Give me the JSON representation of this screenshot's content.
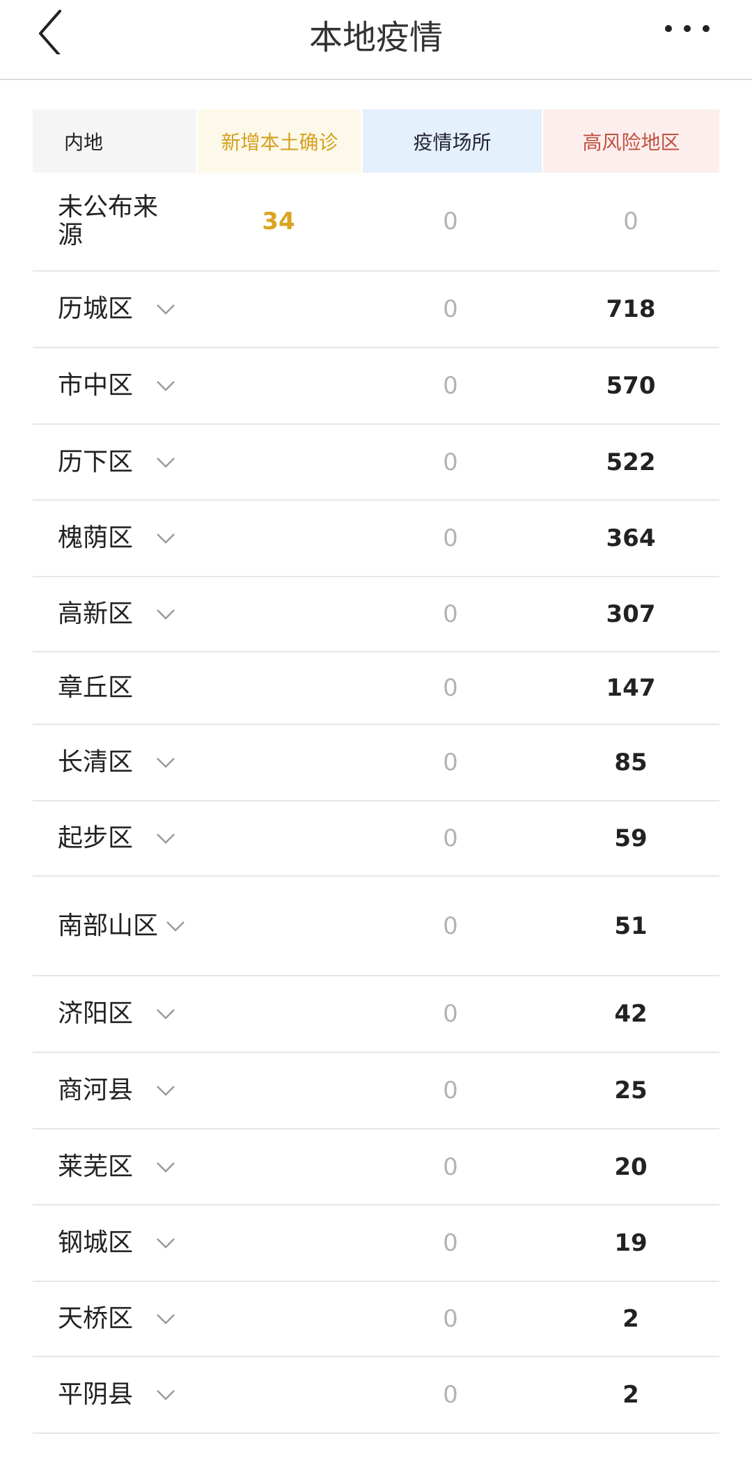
{
  "nav": {
    "title": "本地疫情",
    "back_icon": "chevron-left-icon",
    "more_icon": "more-dots-icon"
  },
  "table": {
    "headers": [
      "内地",
      "新增本土确诊",
      "疫情场所",
      "高风险地区"
    ],
    "header_colors": {
      "confirmed": "#d4a020",
      "risk": "#c0503f",
      "confirmed_bg": "#fdf9ea",
      "venues_bg": "#e5f0fd",
      "risk_bg": "#fdeeee"
    },
    "rows": [
      {
        "name": "未公布来源",
        "expandable": false,
        "confirmed": "34",
        "venues": "0",
        "high_risk": "0"
      },
      {
        "name": "历城区",
        "expandable": true,
        "confirmed": "",
        "venues": "0",
        "high_risk": "718"
      },
      {
        "name": "市中区",
        "expandable": true,
        "confirmed": "",
        "venues": "0",
        "high_risk": "570"
      },
      {
        "name": "历下区",
        "expandable": true,
        "confirmed": "",
        "venues": "0",
        "high_risk": "522"
      },
      {
        "name": "槐荫区",
        "expandable": true,
        "confirmed": "",
        "venues": "0",
        "high_risk": "364"
      },
      {
        "name": "高新区",
        "expandable": true,
        "confirmed": "",
        "venues": "0",
        "high_risk": "307"
      },
      {
        "name": "章丘区",
        "expandable": false,
        "confirmed": "",
        "venues": "0",
        "high_risk": "147"
      },
      {
        "name": "长清区",
        "expandable": true,
        "confirmed": "",
        "venues": "0",
        "high_risk": "85"
      },
      {
        "name": "起步区",
        "expandable": true,
        "confirmed": "",
        "venues": "0",
        "high_risk": "59"
      },
      {
        "name": "南部山区",
        "expandable": true,
        "confirmed": "",
        "venues": "0",
        "high_risk": "51"
      },
      {
        "name": "济阳区",
        "expandable": true,
        "confirmed": "",
        "venues": "0",
        "high_risk": "42"
      },
      {
        "name": "商河县",
        "expandable": true,
        "confirmed": "",
        "venues": "0",
        "high_risk": "25"
      },
      {
        "name": "莱芜区",
        "expandable": true,
        "confirmed": "",
        "venues": "0",
        "high_risk": "20"
      },
      {
        "name": "钢城区",
        "expandable": true,
        "confirmed": "",
        "venues": "0",
        "high_risk": "19"
      },
      {
        "name": "天桥区",
        "expandable": true,
        "confirmed": "",
        "venues": "0",
        "high_risk": "2"
      },
      {
        "name": "平阴县",
        "expandable": true,
        "confirmed": "",
        "venues": "0",
        "high_risk": "2"
      }
    ]
  }
}
